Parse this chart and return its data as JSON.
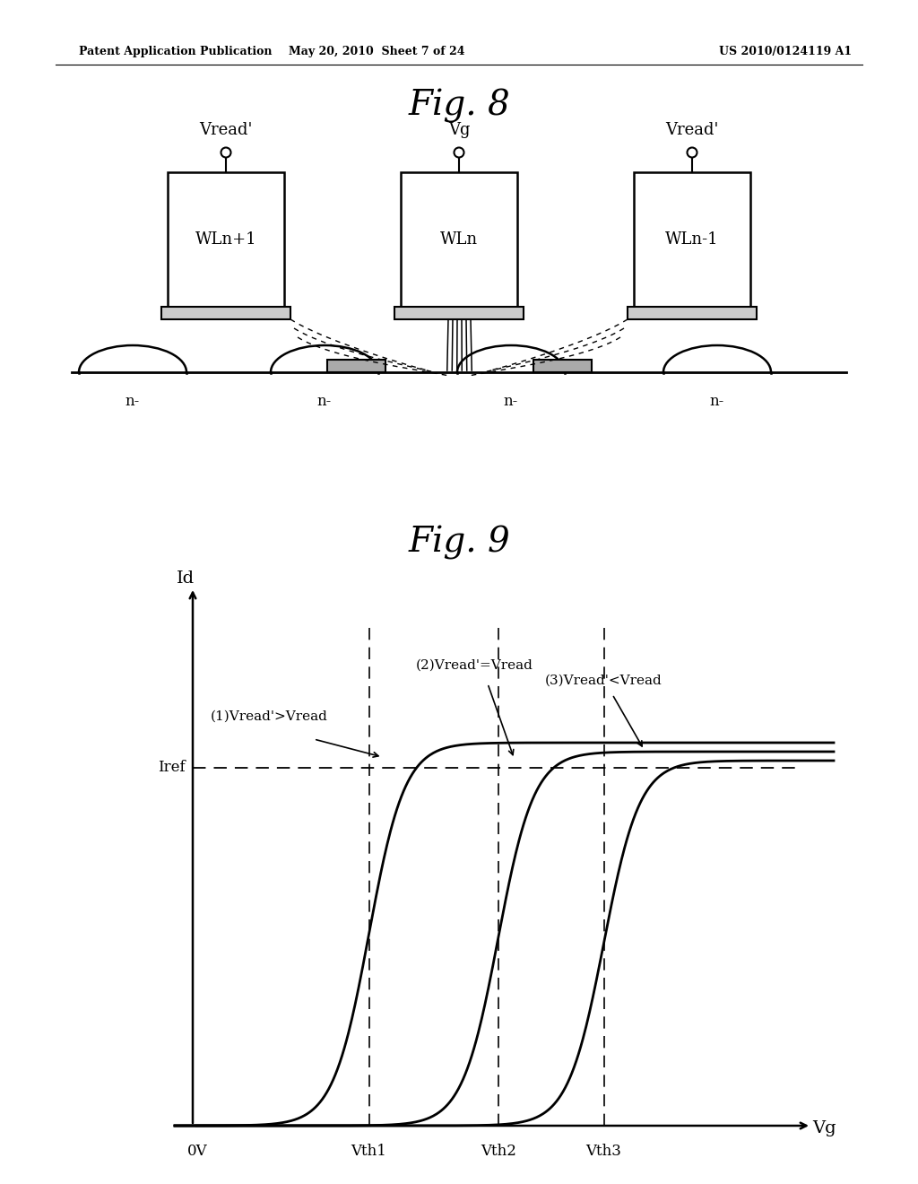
{
  "fig8_title": "Fig. 8",
  "fig9_title": "Fig. 9",
  "header_left": "Patent Application Publication",
  "header_mid": "May 20, 2010  Sheet 7 of 24",
  "header_right": "US 2010/0124119 A1",
  "wl_labels": [
    "WLn+1",
    "WLn",
    "WLn-1"
  ],
  "voltage_labels_top": [
    "Vread'",
    "Vg",
    "Vread'"
  ],
  "n_minus_labels": [
    "n-",
    "n-",
    "n-",
    "n-"
  ],
  "fig9_xlabel": "Vg",
  "fig9_ylabel": "Id",
  "fig9_iref_label": "Iref",
  "fig9_xaxis_labels": [
    "0V",
    "Vth1",
    "Vth2",
    "Vth3"
  ],
  "fig9_curve_labels": [
    "(1)Vread'>Vread",
    "(2)Vread'=Vread",
    "(3)Vread'<Vread"
  ],
  "background_color": "#ffffff"
}
